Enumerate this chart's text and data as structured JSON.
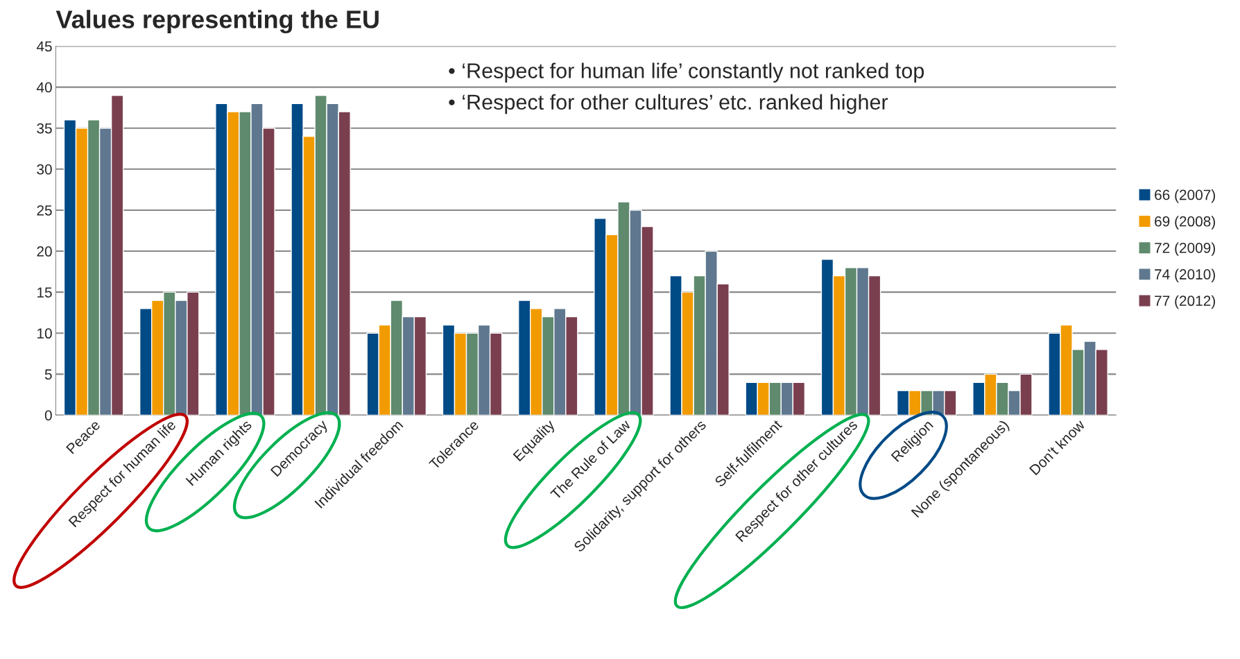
{
  "chart_data": {
    "type": "bar",
    "title": "Values representing the EU",
    "categories": [
      "Peace",
      "Respect for human life",
      "Human rights",
      "Democracy",
      "Individual freedom",
      "Tolerance",
      "Equality",
      "The Rule of Law",
      "Solidarity, support for others",
      "Self-fulfilment",
      "Respect for other cultures",
      "Religion",
      "None (spontaneous)",
      "Don't know"
    ],
    "series": [
      {
        "name": "66 (2007)",
        "color": "#004a86",
        "values": [
          36,
          13,
          38,
          38,
          10,
          11,
          14,
          24,
          17,
          4,
          19,
          3,
          4,
          10
        ]
      },
      {
        "name": "69 (2008)",
        "color": "#f29b00",
        "values": [
          35,
          14,
          37,
          34,
          11,
          10,
          13,
          22,
          15,
          4,
          17,
          3,
          5,
          11
        ]
      },
      {
        "name": "72 (2009)",
        "color": "#5f8a6d",
        "values": [
          36,
          15,
          37,
          39,
          14,
          10,
          12,
          26,
          17,
          4,
          18,
          3,
          4,
          8
        ]
      },
      {
        "name": "74 (2010)",
        "color": "#5f788f",
        "values": [
          35,
          14,
          38,
          38,
          12,
          11,
          13,
          25,
          20,
          4,
          18,
          3,
          3,
          9
        ]
      },
      {
        "name": "77 (2012)",
        "color": "#7a3f4f",
        "values": [
          39,
          15,
          35,
          37,
          12,
          10,
          12,
          23,
          16,
          4,
          17,
          3,
          5,
          8
        ]
      }
    ],
    "ylim": [
      0,
      45
    ],
    "yticks": [
      0,
      5,
      10,
      15,
      20,
      25,
      30,
      35,
      40,
      45
    ],
    "grid": "y",
    "legend": "right",
    "annotations": [
      "• ‘Respect for human life’ constantly not ranked top",
      "• ‘Respect for other cultures’ etc. ranked higher"
    ]
  }
}
